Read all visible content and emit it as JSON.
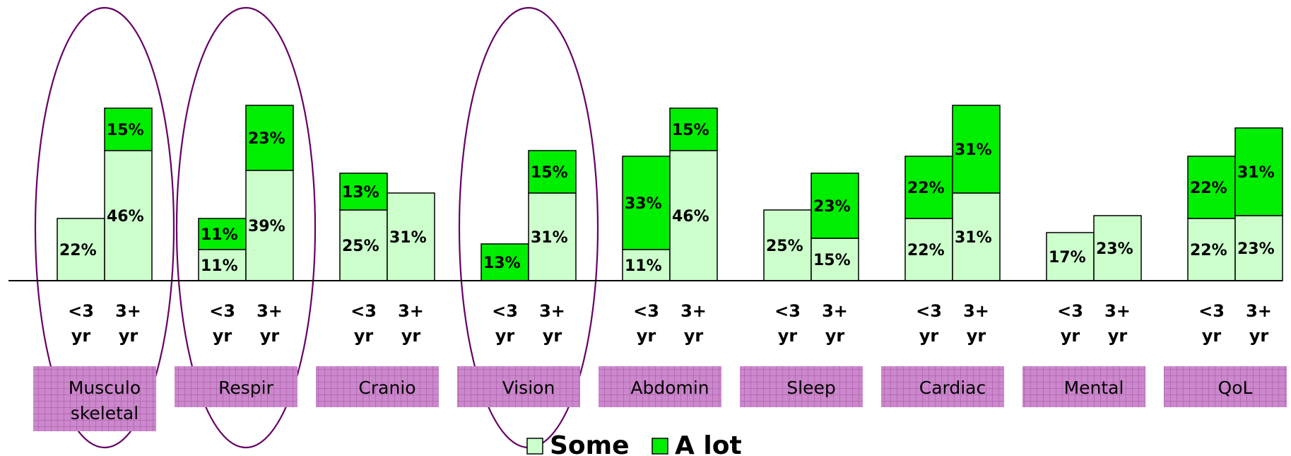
{
  "chart_data": {
    "type": "bar",
    "stacked": true,
    "ylim": [
      0,
      80
    ],
    "grid": false,
    "legend_position": "bottom-center",
    "groups": [
      {
        "category": "Musculo\nskeletal",
        "bars": [
          {
            "x_label": "<3\nyr",
            "some": 22,
            "a_lot": 0,
            "labels": [
              "22%"
            ]
          },
          {
            "x_label": "3+\nyr",
            "some": 46,
            "a_lot": 15,
            "labels": [
              "46%",
              "15%"
            ]
          }
        ],
        "highlighted": true
      },
      {
        "category": "Respir",
        "bars": [
          {
            "x_label": "<3\nyr",
            "some": 11,
            "a_lot": 11,
            "labels": [
              "11%",
              "11%"
            ]
          },
          {
            "x_label": "3+\nyr",
            "some": 39,
            "a_lot": 23,
            "labels": [
              "39%",
              "23%"
            ]
          }
        ],
        "highlighted": true
      },
      {
        "category": "Cranio",
        "bars": [
          {
            "x_label": "<3\nyr",
            "some": 25,
            "a_lot": 13,
            "labels": [
              "25%",
              "13%"
            ]
          },
          {
            "x_label": "3+\nyr",
            "some": 31,
            "a_lot": 0,
            "labels": [
              "31%"
            ]
          }
        ],
        "highlighted": false
      },
      {
        "category": "Vision",
        "bars": [
          {
            "x_label": "<3\nyr",
            "some": 0,
            "a_lot": 13,
            "labels": [
              "13%"
            ]
          },
          {
            "x_label": "3+\nyr",
            "some": 31,
            "a_lot": 15,
            "labels": [
              "31%",
              "15%"
            ]
          }
        ],
        "highlighted": true
      },
      {
        "category": "Abdomin",
        "bars": [
          {
            "x_label": "<3\nyr",
            "some": 11,
            "a_lot": 33,
            "labels": [
              "11%",
              "33%"
            ]
          },
          {
            "x_label": "3+\nyr",
            "some": 46,
            "a_lot": 15,
            "labels": [
              "46%",
              "15%"
            ]
          }
        ],
        "highlighted": false
      },
      {
        "category": "Sleep",
        "bars": [
          {
            "x_label": "<3\nyr",
            "some": 25,
            "a_lot": 0,
            "labels": [
              "25%"
            ]
          },
          {
            "x_label": "3+\nyr",
            "some": 15,
            "a_lot": 23,
            "labels": [
              "15%",
              "23%"
            ]
          }
        ],
        "highlighted": false
      },
      {
        "category": "Cardiac",
        "bars": [
          {
            "x_label": "<3\nyr",
            "some": 22,
            "a_lot": 22,
            "labels": [
              "22%",
              "22%"
            ]
          },
          {
            "x_label": "3+\nyr",
            "some": 31,
            "a_lot": 31,
            "labels": [
              "31%",
              "31%"
            ]
          }
        ],
        "highlighted": false
      },
      {
        "category": "Mental",
        "bars": [
          {
            "x_label": "<3\nyr",
            "some": 17,
            "a_lot": 0,
            "labels": [
              "17%"
            ]
          },
          {
            "x_label": "3+\nyr",
            "some": 23,
            "a_lot": 0,
            "labels": [
              "23%"
            ]
          }
        ],
        "highlighted": false
      },
      {
        "category": "QoL",
        "bars": [
          {
            "x_label": "<3\nyr",
            "some": 22,
            "a_lot": 22,
            "labels": [
              "22%",
              "22%"
            ]
          },
          {
            "x_label": "3+\nyr",
            "some": 23,
            "a_lot": 31,
            "labels": [
              "23%",
              "31%"
            ]
          }
        ],
        "highlighted": false
      }
    ],
    "series": [
      {
        "name": "Some",
        "color": "#ccffcc"
      },
      {
        "name": "A lot",
        "color": "#00ee00"
      }
    ],
    "colors": {
      "category_box": "#cc88cc",
      "highlight_ellipse": "#660066",
      "axis": "#000000"
    }
  }
}
